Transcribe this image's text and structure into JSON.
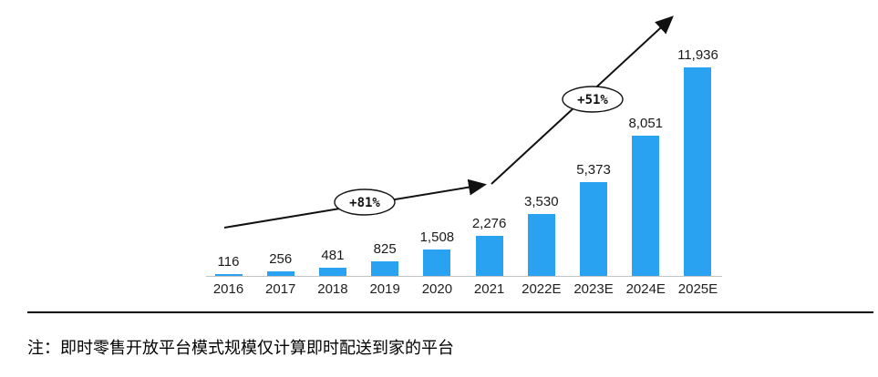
{
  "chart_data": {
    "type": "bar",
    "categories": [
      "2016",
      "2017",
      "2018",
      "2019",
      "2020",
      "2021",
      "2022E",
      "2023E",
      "2024E",
      "2025E"
    ],
    "values": [
      116,
      256,
      481,
      825,
      1508,
      2276,
      3530,
      5373,
      8051,
      11936
    ],
    "value_labels": [
      "116",
      "256",
      "481",
      "825",
      "1,508",
      "2,276",
      "3,530",
      "5,373",
      "8,051",
      "11,936"
    ],
    "title": "",
    "xlabel": "",
    "ylabel": "",
    "ylim": [
      0,
      12000
    ],
    "grid": false,
    "legend": "none",
    "bar_color": "#2aa2f2",
    "annotations": [
      {
        "label": "+81%"
      },
      {
        "label": "+51%"
      }
    ]
  },
  "footnote": "注：即时零售开放平台模式规模仅计算即时配送到家的平台"
}
